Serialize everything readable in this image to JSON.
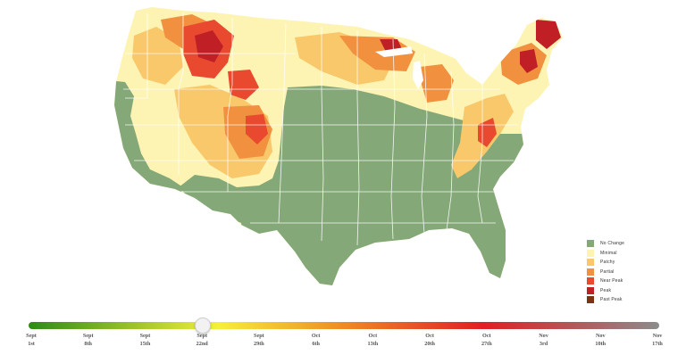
{
  "legend": {
    "items": [
      {
        "label": "No Change",
        "color": "#85a878"
      },
      {
        "label": "Minimal",
        "color": "#fdf3b2"
      },
      {
        "label": "Patchy",
        "color": "#f8c86a"
      },
      {
        "label": "Partial",
        "color": "#f1913f"
      },
      {
        "label": "Near Peak",
        "color": "#e8492f"
      },
      {
        "label": "Peak",
        "color": "#c01f25"
      },
      {
        "label": "Past Peak",
        "color": "#7a3414"
      }
    ]
  },
  "timeline": {
    "selected_index": 3,
    "colors": {
      "start": "#2f8a17",
      "mid_yellow": "#f4f03a",
      "orange": "#f08a24",
      "red": "#e01f25",
      "end": "#8c8c8c"
    },
    "ticks": [
      {
        "month": "Sept",
        "day": "1st"
      },
      {
        "month": "Sept",
        "day": "8th"
      },
      {
        "month": "Sept",
        "day": "15th"
      },
      {
        "month": "Sept",
        "day": "22nd"
      },
      {
        "month": "Sept",
        "day": "29th"
      },
      {
        "month": "Oct",
        "day": "6th"
      },
      {
        "month": "Oct",
        "day": "13th"
      },
      {
        "month": "Oct",
        "day": "20th"
      },
      {
        "month": "Oct",
        "day": "27th"
      },
      {
        "month": "Nov",
        "day": "3rd"
      },
      {
        "month": "Nov",
        "day": "10th"
      },
      {
        "month": "Nov",
        "day": "17th"
      }
    ]
  }
}
